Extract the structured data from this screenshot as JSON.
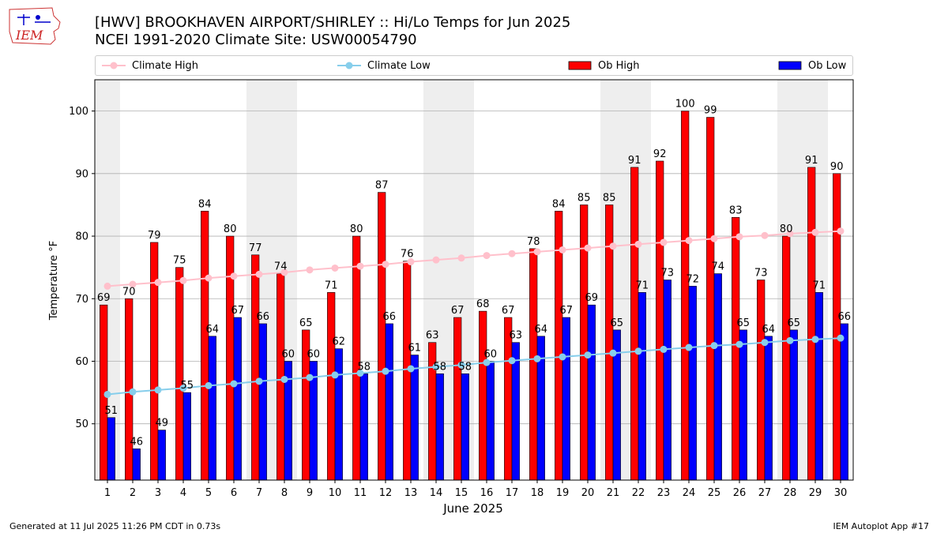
{
  "header": {
    "title_line1": "[HWV] BROOKHAVEN AIRPORT/SHIRLEY :: Hi/Lo Temps for Jun 2025",
    "title_line2": "NCEI 1991-2020 Climate Site: USW00054790"
  },
  "logo": {
    "text": "IEM",
    "icon": "iowa-state-logo-icon"
  },
  "footer": {
    "generated": "Generated at 11 Jul 2025 11:26 PM CDT in 0.73s",
    "app": "IEM Autoplot App #17"
  },
  "chart_data": {
    "type": "bar",
    "xlabel": "June 2025",
    "ylabel": "Temperature °F",
    "ylim": [
      41,
      105
    ],
    "yticks": [
      50,
      60,
      70,
      80,
      90,
      100
    ],
    "grid": true,
    "legend_position": "top",
    "categories": [
      1,
      2,
      3,
      4,
      5,
      6,
      7,
      8,
      9,
      10,
      11,
      12,
      13,
      14,
      15,
      16,
      17,
      18,
      19,
      20,
      21,
      22,
      23,
      24,
      25,
      26,
      27,
      28,
      29,
      30
    ],
    "weekend_shading_days": [
      1,
      7,
      8,
      14,
      15,
      21,
      22,
      28,
      29
    ],
    "series": [
      {
        "name": "Climate High",
        "kind": "line",
        "color": "#ffc0cb",
        "values": [
          72.0,
          72.3,
          72.6,
          72.9,
          73.3,
          73.6,
          73.9,
          74.2,
          74.6,
          74.9,
          75.2,
          75.5,
          75.9,
          76.2,
          76.5,
          76.9,
          77.2,
          77.5,
          77.8,
          78.1,
          78.4,
          78.7,
          79.0,
          79.3,
          79.6,
          79.9,
          80.1,
          80.4,
          80.6,
          80.8
        ]
      },
      {
        "name": "Climate Low",
        "kind": "line",
        "color": "#87ceeb",
        "values": [
          54.7,
          55.1,
          55.4,
          55.7,
          56.1,
          56.4,
          56.8,
          57.1,
          57.4,
          57.8,
          58.1,
          58.4,
          58.8,
          59.1,
          59.4,
          59.8,
          60.1,
          60.4,
          60.7,
          61.0,
          61.3,
          61.6,
          61.9,
          62.2,
          62.5,
          62.7,
          63.0,
          63.3,
          63.5,
          63.7
        ]
      },
      {
        "name": "Ob High",
        "kind": "bar",
        "color": "#ff0000",
        "values": [
          69,
          70,
          79,
          75,
          84,
          80,
          77,
          74,
          65,
          71,
          80,
          87,
          76,
          63,
          67,
          68,
          67,
          78,
          84,
          85,
          85,
          91,
          92,
          100,
          99,
          83,
          73,
          80,
          91,
          90
        ]
      },
      {
        "name": "Ob Low",
        "kind": "bar",
        "color": "#0000ff",
        "values": [
          51,
          46,
          49,
          55,
          64,
          67,
          66,
          60,
          60,
          62,
          58,
          66,
          61,
          58,
          58,
          60,
          63,
          64,
          67,
          69,
          65,
          71,
          73,
          72,
          74,
          65,
          64,
          65,
          71,
          66
        ]
      }
    ]
  }
}
